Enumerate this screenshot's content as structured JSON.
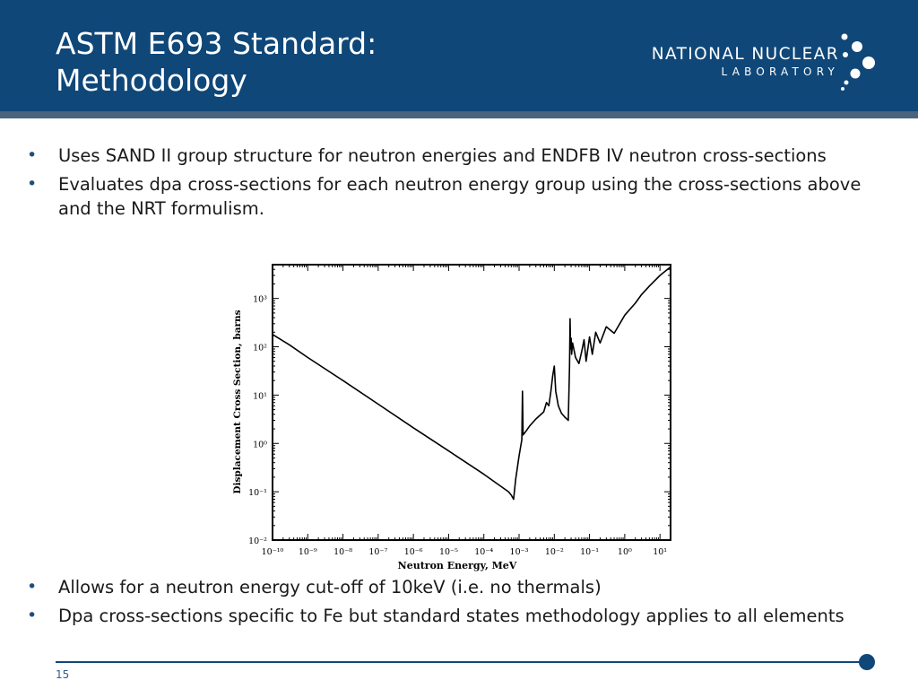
{
  "header": {
    "title_line1": "ASTM E693 Standard:",
    "title_line2": "Methodology",
    "logo_line1": "NATIONAL NUCLEAR",
    "logo_line2": "LABORATORY",
    "background_color": "#0f4778"
  },
  "bullets_top": [
    {
      "text": "Uses SAND II group structure for neutron energies and ENDFB IV neutron cross-sections"
    },
    {
      "text": "Evaluates dpa cross-sections for each neutron energy group using the  cross-sections above and the NRT formulism."
    }
  ],
  "bullets_bottom": [
    {
      "text": "Allows for a neutron energy cut-off of 10keV (i.e. no thermals)"
    },
    {
      "text": "Dpa cross-sections specific to Fe but standard states methodology applies to all elements"
    }
  ],
  "chart_data": {
    "type": "line",
    "xlabel": "Neutron Energy, MeV",
    "ylabel": "Displacement Cross Section, barns",
    "xscale": "log",
    "yscale": "log",
    "xlim": [
      1e-10,
      20
    ],
    "ylim": [
      0.01,
      5000
    ],
    "x_tick_labels": [
      "10⁻¹⁰",
      "10⁻⁹",
      "10⁻⁸",
      "10⁻⁷",
      "10⁻⁶",
      "10⁻⁵",
      "10⁻⁴",
      "10⁻³",
      "10⁻²",
      "10⁻¹",
      "10⁰",
      "10¹"
    ],
    "y_tick_labels": [
      "10⁻²",
      "10⁻¹",
      "10⁰",
      "10¹",
      "10²",
      "10³"
    ],
    "x_tick_values": [
      1e-10,
      1e-09,
      1e-08,
      1e-07,
      1e-06,
      1e-05,
      0.0001,
      0.001,
      0.01,
      0.1,
      1,
      10
    ],
    "y_tick_values": [
      0.01,
      0.1,
      1,
      10,
      100,
      1000
    ],
    "series": [
      {
        "x": [
          1e-10,
          3e-10,
          1e-09,
          1e-08,
          1e-07,
          1e-06,
          1e-05,
          0.0001,
          0.0005,
          0.0006,
          0.0007,
          0.0008,
          0.001,
          0.0012,
          0.00125,
          0.0013,
          0.0015,
          0.002,
          0.003,
          0.005,
          0.006,
          0.007,
          0.008,
          0.009,
          0.01,
          0.011,
          0.013,
          0.016,
          0.02,
          0.025,
          0.027,
          0.028,
          0.029,
          0.03,
          0.031,
          0.033,
          0.04,
          0.05,
          0.06,
          0.07,
          0.08,
          0.1,
          0.12,
          0.15,
          0.2,
          0.3,
          0.5,
          1,
          2,
          3,
          5,
          10,
          20
        ],
        "y": [
          180,
          110,
          60,
          20,
          6.5,
          2.1,
          0.7,
          0.23,
          0.1,
          0.085,
          0.07,
          0.18,
          0.55,
          1.2,
          12,
          1.5,
          1.7,
          2.3,
          3.2,
          4.5,
          7,
          6,
          12,
          25,
          40,
          12,
          6,
          4.2,
          3.5,
          3.0,
          40,
          380,
          90,
          150,
          70,
          120,
          60,
          45,
          80,
          140,
          50,
          160,
          70,
          200,
          120,
          260,
          190,
          450,
          800,
          1200,
          1800,
          3000,
          4500
        ]
      }
    ]
  },
  "footer": {
    "page_number": "15"
  }
}
